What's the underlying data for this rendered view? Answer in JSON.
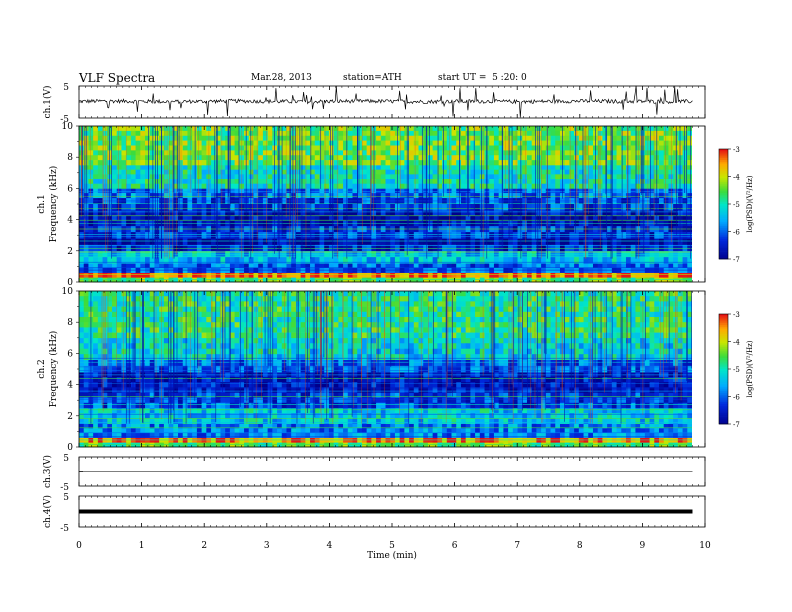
{
  "header": {
    "title": "VLF Spectra",
    "date": "Mar.28, 2013",
    "station": "station=ATH",
    "start": "start UT =  5 :20: 0"
  },
  "chart_data": [
    {
      "type": "line",
      "id": "ch1",
      "ylabel": "ch.1(V)",
      "ytick_labels": [
        "5",
        "-5"
      ],
      "ylim": [
        -5,
        5
      ],
      "x": [
        0.0,
        0.5,
        1.0,
        1.5,
        2.0,
        2.5,
        3.0,
        3.5,
        4.0,
        4.5,
        5.0,
        5.5,
        6.0,
        6.5,
        7.0,
        7.5,
        8.0,
        8.5,
        9.0,
        9.5,
        9.8
      ],
      "values": [
        0.2,
        0.3,
        0.2,
        0.1,
        0.2,
        0.3,
        0.2,
        0.1,
        0.2,
        0.3,
        0.2,
        0.1,
        0.2,
        0.2,
        0.1,
        0.2,
        0.3,
        0.2,
        0.2,
        0.1,
        0.2
      ],
      "note_text": ""
    },
    {
      "type": "heatmap",
      "id": "spec1",
      "ylabel": "ch.1\nFrequency (kHz)",
      "ytick_labels": [
        "10",
        "8",
        "6",
        "4",
        "2",
        "0"
      ],
      "ylim": [
        0,
        10
      ],
      "xlim": [
        0,
        9.8
      ],
      "colorbar": {
        "label": "log(PSD)(V²/Hz)",
        "tick_labels": [
          "-3",
          "-4",
          "-5",
          "-6",
          "-7"
        ],
        "range": [
          -7,
          -3
        ]
      },
      "rows": [
        {
          "f_lo": 0.0,
          "f_hi": 0.3,
          "level": -4.5
        },
        {
          "f_lo": 0.3,
          "f_hi": 0.6,
          "level": -3.2
        },
        {
          "f_lo": 0.6,
          "f_hi": 1.2,
          "level": -6.0
        },
        {
          "f_lo": 1.2,
          "f_hi": 2.0,
          "level": -5.4
        },
        {
          "f_lo": 2.0,
          "f_hi": 2.4,
          "level": -6.4
        },
        {
          "f_lo": 2.4,
          "f_hi": 2.8,
          "level": -6.9
        },
        {
          "f_lo": 2.8,
          "f_hi": 3.6,
          "level": -6.3
        },
        {
          "f_lo": 3.6,
          "f_hi": 4.6,
          "level": -6.7
        },
        {
          "f_lo": 4.6,
          "f_hi": 5.4,
          "level": -6.2
        },
        {
          "f_lo": 5.4,
          "f_hi": 6.0,
          "level": -5.9
        },
        {
          "f_lo": 6.0,
          "f_hi": 7.5,
          "level": -5.0
        },
        {
          "f_lo": 7.5,
          "f_hi": 10.0,
          "level": -4.4
        }
      ]
    },
    {
      "type": "heatmap",
      "id": "spec2",
      "ylabel": "ch.2\nFrequency (kHz)",
      "ytick_labels": [
        "10",
        "8",
        "6",
        "4",
        "2",
        "0"
      ],
      "ylim": [
        0,
        10
      ],
      "xlim": [
        0,
        9.8
      ],
      "colorbar": {
        "label": "log(PSD)(V²/Hz)",
        "tick_labels": [
          "-3",
          "-4",
          "-5",
          "-6",
          "-7"
        ],
        "range": [
          -7,
          -3
        ]
      },
      "rows": [
        {
          "f_lo": 0.0,
          "f_hi": 0.3,
          "level": -4.6
        },
        {
          "f_lo": 0.3,
          "f_hi": 0.6,
          "level": -3.4
        },
        {
          "f_lo": 0.6,
          "f_hi": 1.5,
          "level": -5.8
        },
        {
          "f_lo": 1.5,
          "f_hi": 2.5,
          "level": -5.3
        },
        {
          "f_lo": 2.5,
          "f_hi": 3.5,
          "level": -6.2
        },
        {
          "f_lo": 3.5,
          "f_hi": 4.8,
          "level": -6.6
        },
        {
          "f_lo": 4.8,
          "f_hi": 5.6,
          "level": -6.0
        },
        {
          "f_lo": 5.6,
          "f_hi": 7.0,
          "level": -5.2
        },
        {
          "f_lo": 7.0,
          "f_hi": 10.0,
          "level": -4.8
        }
      ]
    },
    {
      "type": "line",
      "id": "ch3",
      "ylabel": "ch.3(V)",
      "ytick_labels": [
        "5",
        "-5"
      ],
      "ylim": [
        -5,
        5
      ],
      "x": [
        0,
        9.8
      ],
      "values": [
        0.0,
        0.0
      ]
    },
    {
      "type": "line",
      "id": "ch4",
      "ylabel": "ch.4(V)",
      "ytick_labels": [
        "5",
        "-5"
      ],
      "ylim": [
        -5,
        5
      ],
      "x": [
        0,
        9.8
      ],
      "values": [
        0.0,
        0.0
      ]
    }
  ],
  "xaxis": {
    "label": "Time (min)",
    "tick_labels": [
      "0",
      "1",
      "2",
      "3",
      "4",
      "5",
      "6",
      "7",
      "8",
      "9",
      "10"
    ],
    "xlim": [
      0,
      10
    ]
  }
}
